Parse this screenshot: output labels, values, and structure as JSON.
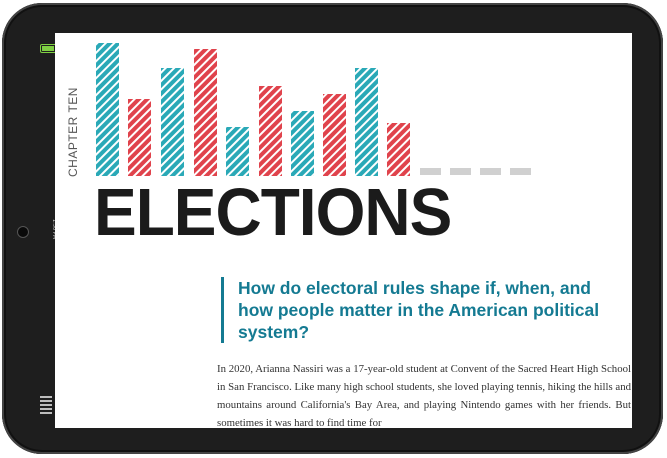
{
  "status": {
    "time": "1:50 PM"
  },
  "chapter": {
    "label": "CHAPTER TEN",
    "title": "ELECTIONS"
  },
  "colors": {
    "teal": "#2aa9b7",
    "red": "#e0434c",
    "gray": "#d0d0d0",
    "question": "#147a92"
  },
  "question": "How do electoral rules shape if, when, and how people matter in the American political system?",
  "body": "In 2020, Arianna Nassiri was a 17-year-old student at Convent of the Sacred Heart High School in San Francisco. Like many high school students, she loved playing tennis, hiking the hills and mountains around California's Bay Area, and playing Nintendo games with her friends. But sometimes it was hard to find time for"
}
